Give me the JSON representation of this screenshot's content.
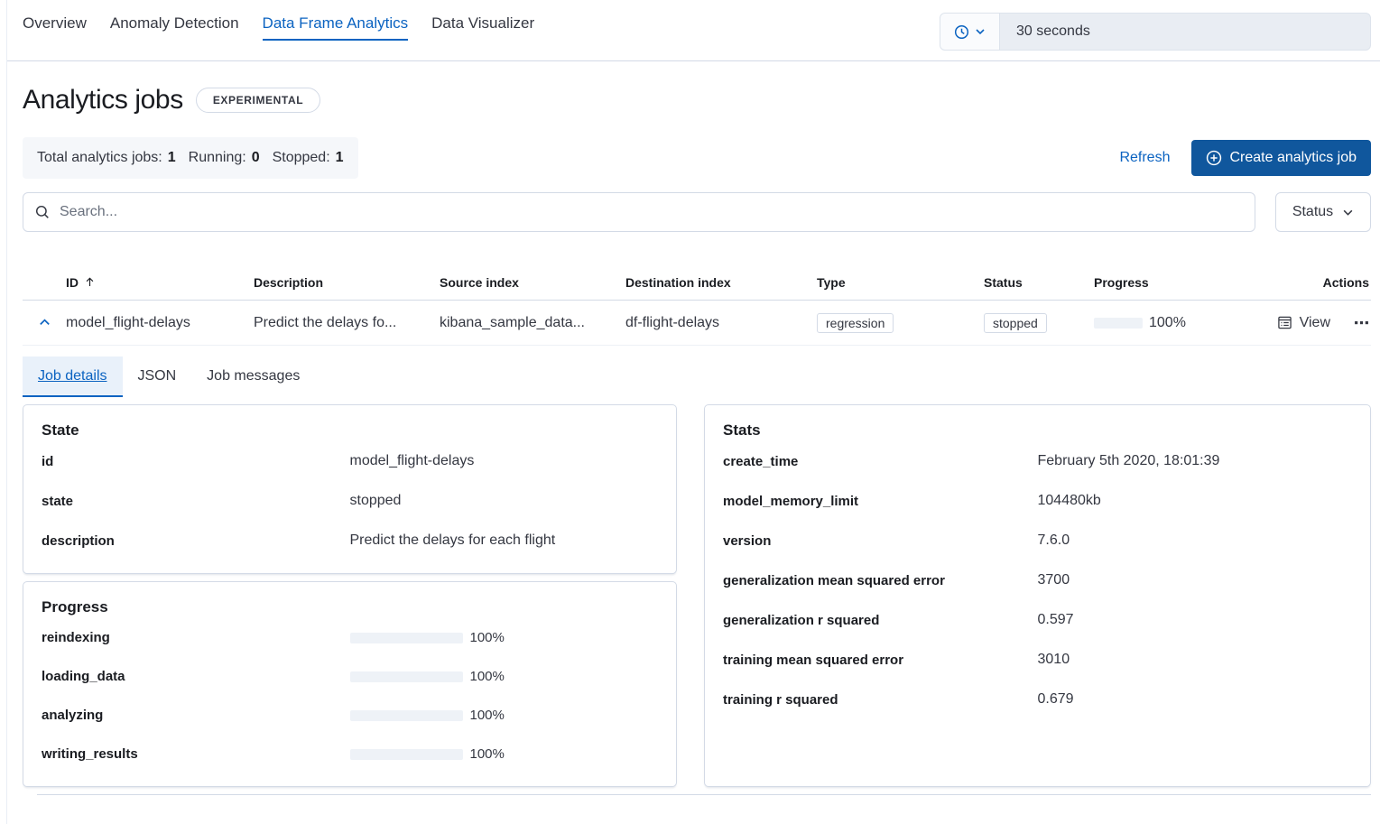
{
  "nav": {
    "tabs": [
      {
        "label": "Overview",
        "active": false
      },
      {
        "label": "Anomaly Detection",
        "active": false
      },
      {
        "label": "Data Frame Analytics",
        "active": true
      },
      {
        "label": "Data Visualizer",
        "active": false
      }
    ]
  },
  "time_picker": {
    "value": "30 seconds"
  },
  "page": {
    "title": "Analytics jobs",
    "badge": "EXPERIMENTAL"
  },
  "summary": {
    "items": [
      {
        "label": "Total analytics jobs:",
        "value": "1"
      },
      {
        "label": "Running:",
        "value": "0"
      },
      {
        "label": "Stopped:",
        "value": "1"
      }
    ]
  },
  "toolbar": {
    "refresh_label": "Refresh",
    "create_label": "Create analytics job"
  },
  "search": {
    "placeholder": "Search...",
    "status_label": "Status"
  },
  "table": {
    "columns": [
      "ID",
      "Description",
      "Source index",
      "Destination index",
      "Type",
      "Status",
      "Progress",
      "Actions"
    ],
    "row": {
      "id": "model_flight-delays",
      "description": "Predict the delays fo...",
      "source_index": "kibana_sample_data...",
      "destination_index": "df-flight-delays",
      "type": "regression",
      "status": "stopped",
      "progress_percent": 100,
      "progress_label": "100%",
      "view_label": "View"
    }
  },
  "detail_tabs": [
    {
      "label": "Job details",
      "active": true
    },
    {
      "label": "JSON",
      "active": false
    },
    {
      "label": "Job messages",
      "active": false
    }
  ],
  "state_panel": {
    "title": "State",
    "rows": [
      {
        "term": "id",
        "value": "model_flight-delays"
      },
      {
        "term": "state",
        "value": "stopped"
      },
      {
        "term": "description",
        "value": "Predict the delays for each flight"
      }
    ]
  },
  "progress_panel": {
    "title": "Progress",
    "rows": [
      {
        "term": "reindexing",
        "percent": 100,
        "label": "100%"
      },
      {
        "term": "loading_data",
        "percent": 100,
        "label": "100%"
      },
      {
        "term": "analyzing",
        "percent": 100,
        "label": "100%"
      },
      {
        "term": "writing_results",
        "percent": 100,
        "label": "100%"
      }
    ]
  },
  "stats_panel": {
    "title": "Stats",
    "rows": [
      {
        "term": "create_time",
        "value": "February 5th 2020, 18:01:39"
      },
      {
        "term": "model_memory_limit",
        "value": "104480kb"
      },
      {
        "term": "version",
        "value": "7.6.0"
      },
      {
        "term": "generalization mean squared error",
        "value": "3700"
      },
      {
        "term": "generalization r squared",
        "value": "0.597"
      },
      {
        "term": "training mean squared error",
        "value": "3010"
      },
      {
        "term": "training r squared",
        "value": "0.679"
      }
    ]
  },
  "colors": {
    "accent": "#0b63c1",
    "primary_fill": "#10579d",
    "panel_border": "#d3dae6",
    "summary_bg": "#f5f7fa",
    "timepicker_bg": "#e9edf3",
    "text": "#343741",
    "heading_text": "#1a1c21"
  }
}
